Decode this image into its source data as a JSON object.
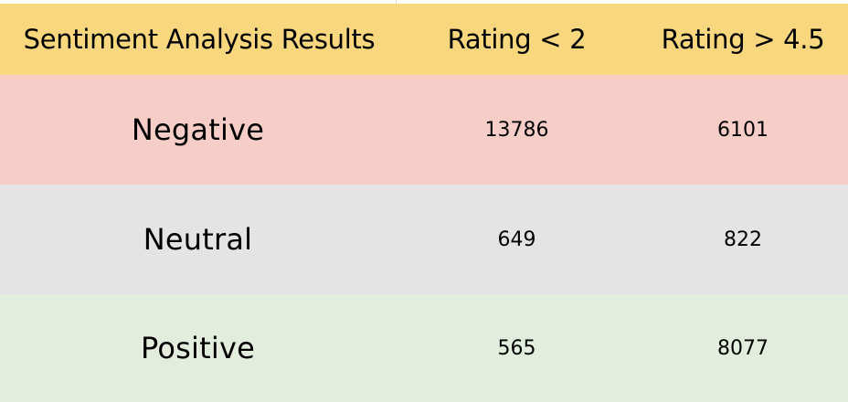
{
  "colors": {
    "header_bg": "#f9d77e",
    "negative_bg": "#f6cdc7",
    "neutral_bg": "#e4e4e4",
    "positive_bg": "#e3eddd"
  },
  "table": {
    "headers": [
      "Sentiment Analysis Results",
      "Rating < 2",
      "Rating > 4.5"
    ],
    "rows": [
      {
        "label": "Negative",
        "rating_lt_2": "13786",
        "rating_gt_4_5": "6101"
      },
      {
        "label": "Neutral",
        "rating_lt_2": "649",
        "rating_gt_4_5": "822"
      },
      {
        "label": "Positive",
        "rating_lt_2": "565",
        "rating_gt_4_5": "8077"
      }
    ]
  }
}
